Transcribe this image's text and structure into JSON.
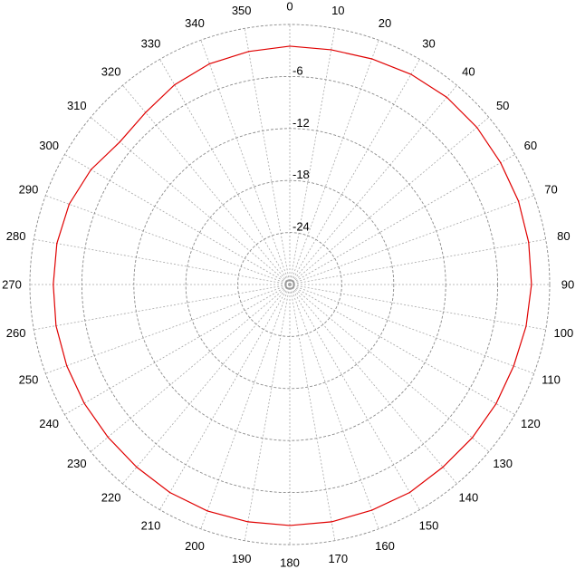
{
  "chart_data": {
    "type": "polar-line",
    "title": "",
    "angle_unit": "deg",
    "angle_zero": "top",
    "angle_direction": "clockwise",
    "angle_ticks": [
      "0",
      "10",
      "20",
      "30",
      "40",
      "50",
      "60",
      "70",
      "80",
      "90",
      "100",
      "110",
      "120",
      "130",
      "140",
      "150",
      "160",
      "170",
      "180",
      "190",
      "200",
      "210",
      "220",
      "230",
      "240",
      "250",
      "260",
      "270",
      "280",
      "290",
      "300",
      "310",
      "320",
      "330",
      "340",
      "350"
    ],
    "radial_range": [
      -30,
      0
    ],
    "radial_ticks": [
      -6,
      -12,
      -18,
      -24
    ],
    "radial_tick_labels": [
      "-6",
      "-12",
      "-18",
      "-24"
    ],
    "grid": true,
    "series": [
      {
        "color": "#e00000",
        "angles": [
          0,
          10,
          20,
          30,
          40,
          50,
          60,
          70,
          80,
          90,
          100,
          110,
          120,
          130,
          140,
          150,
          160,
          170,
          180,
          190,
          200,
          210,
          220,
          230,
          240,
          250,
          260,
          270,
          280,
          290,
          300,
          310,
          320,
          330,
          340,
          350,
          360
        ],
        "values": [
          -2.5,
          -2.5,
          -2.3,
          -2.0,
          -1.8,
          -1.8,
          -1.9,
          -1.9,
          -2.0,
          -2.1,
          -2.3,
          -2.5,
          -2.5,
          -2.5,
          -2.5,
          -2.3,
          -2.3,
          -2.2,
          -2.2,
          -2.2,
          -2.2,
          -2.3,
          -2.5,
          -2.6,
          -2.6,
          -2.6,
          -2.6,
          -2.7,
          -2.7,
          -2.9,
          -3.5,
          -4.4,
          -4.1,
          -3.4,
          -2.9,
          -2.7,
          -2.5
        ]
      }
    ]
  }
}
